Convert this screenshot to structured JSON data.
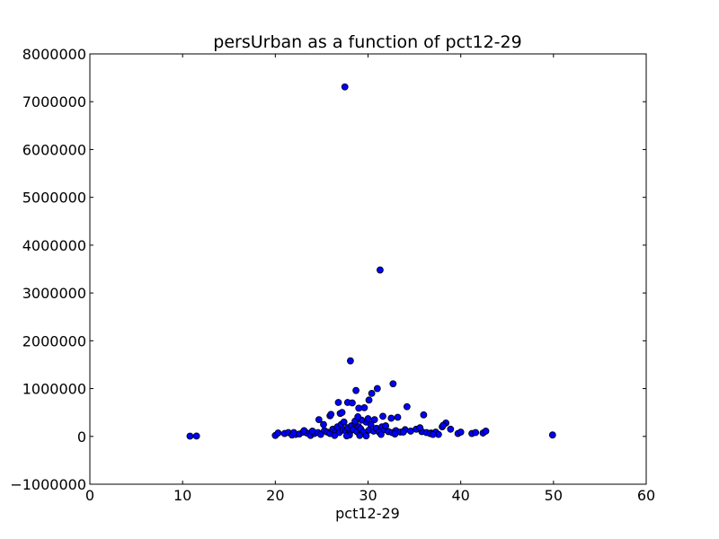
{
  "chart_data": {
    "type": "scatter",
    "title": "persUrban as a function of pct12-29",
    "xlabel": "pct12-29",
    "ylabel": "",
    "xlim": [
      0,
      60
    ],
    "ylim": [
      -1000000,
      8000000
    ],
    "xticks": [
      0,
      10,
      20,
      30,
      40,
      50,
      60
    ],
    "xtick_labels": [
      "0",
      "10",
      "20",
      "30",
      "40",
      "50",
      "60"
    ],
    "yticks": [
      -1000000,
      0,
      1000000,
      2000000,
      3000000,
      4000000,
      5000000,
      6000000,
      7000000,
      8000000
    ],
    "ytick_labels": [
      "−1000000",
      "0",
      "1000000",
      "2000000",
      "3000000",
      "4000000",
      "5000000",
      "6000000",
      "7000000",
      "8000000"
    ],
    "grid": false,
    "legend": "none",
    "marker_color": "#0000ff",
    "series": [
      {
        "x": [
          10.8,
          11.5,
          20.0,
          20.3,
          21.0,
          21.4,
          21.8,
          22.2,
          22.6,
          23.0,
          23.4,
          23.8,
          24.2,
          24.6,
          24.9,
          25.3,
          25.6,
          25.9,
          26.2,
          26.5,
          26.7,
          26.9,
          27.1,
          27.3,
          27.4,
          27.6,
          27.8,
          28.0,
          28.2,
          28.4,
          28.6,
          28.8,
          29.0,
          29.2,
          29.5,
          29.8,
          30.1,
          30.3,
          30.6,
          30.9,
          31.2,
          31.5,
          31.8,
          32.2,
          32.6,
          33.0,
          33.5,
          34.0,
          34.6,
          35.2,
          35.8,
          36.3,
          36.8,
          37.3,
          37.6,
          38.0,
          38.4,
          38.9,
          39.7,
          40.0,
          41.2,
          41.6,
          42.4,
          42.7,
          49.9,
          27.5,
          31.3,
          28.1,
          32.7,
          27.8,
          28.7,
          31.0,
          26.8,
          34.2,
          36.0,
          30.4,
          30.1,
          28.3,
          29.6,
          24.7,
          25.9,
          29.0,
          32.5,
          27.0,
          30.7,
          33.2,
          28.6,
          26.0,
          31.6,
          35.6,
          29.3,
          28.9,
          27.2,
          38.1,
          23.1,
          25.2,
          30.0,
          22.0,
          31.9,
          36.7,
          33.8,
          37.0,
          24.0,
          26.4,
          28.0,
          29.8,
          31.4,
          32.9,
          27.7,
          29.1
        ],
        "y": [
          5000,
          8000,
          20000,
          70000,
          60000,
          80000,
          30000,
          40000,
          50000,
          90000,
          70000,
          20000,
          60000,
          80000,
          40000,
          120000,
          90000,
          60000,
          150000,
          100000,
          200000,
          80000,
          250000,
          130000,
          300000,
          120000,
          180000,
          70000,
          220000,
          140000,
          280000,
          100000,
          200000,
          160000,
          90000,
          300000,
          130000,
          250000,
          110000,
          170000,
          90000,
          200000,
          140000,
          100000,
          80000,
          120000,
          90000,
          140000,
          110000,
          150000,
          100000,
          80000,
          70000,
          90000,
          40000,
          200000,
          280000,
          150000,
          60000,
          90000,
          60000,
          80000,
          70000,
          110000,
          30000,
          7310000,
          3480000,
          1580000,
          1100000,
          710000,
          960000,
          1000000,
          710000,
          620000,
          450000,
          900000,
          760000,
          700000,
          600000,
          350000,
          430000,
          590000,
          380000,
          480000,
          350000,
          400000,
          320000,
          460000,
          420000,
          180000,
          340000,
          410000,
          500000,
          230000,
          120000,
          250000,
          370000,
          80000,
          220000,
          60000,
          90000,
          40000,
          110000,
          20000,
          30000,
          10000,
          40000,
          50000,
          10000,
          20000
        ]
      }
    ]
  }
}
